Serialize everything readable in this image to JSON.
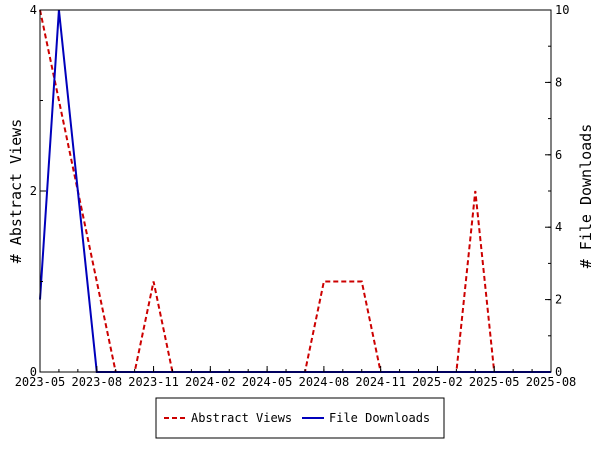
{
  "chart_data": {
    "type": "line",
    "y_left_label": "# Abstract Views",
    "y_right_label": "# File Downloads",
    "y_left_lim": [
      0,
      4
    ],
    "y_right_lim": [
      0,
      10
    ],
    "y_left_ticks": [
      "0",
      "2",
      "4"
    ],
    "y_right_ticks": [
      "0",
      "2",
      "4",
      "6",
      "8",
      "10"
    ],
    "x_ticks": [
      "2023-05",
      "2023-08",
      "2023-11",
      "2024-02",
      "2024-05",
      "2024-08",
      "2024-11",
      "2025-02",
      "2025-05",
      "2025-08"
    ],
    "x_months": [
      "2023-05",
      "2023-06",
      "2023-07",
      "2023-08",
      "2023-09",
      "2023-10",
      "2023-11",
      "2023-12",
      "2024-01",
      "2024-02",
      "2024-03",
      "2024-04",
      "2024-05",
      "2024-06",
      "2024-07",
      "2024-08",
      "2024-09",
      "2024-10",
      "2024-11",
      "2024-12",
      "2025-01",
      "2025-02",
      "2025-03",
      "2025-04",
      "2025-05",
      "2025-06",
      "2025-07",
      "2025-08"
    ],
    "series": [
      {
        "name": "Abstract Views",
        "axis": "left",
        "color": "#cc0000",
        "style": "dashed",
        "values": [
          4,
          null,
          null,
          null,
          0,
          0,
          1,
          0,
          0,
          0,
          0,
          0,
          0,
          0,
          0,
          1,
          1,
          1,
          0,
          0,
          0,
          0,
          0,
          2,
          0,
          0,
          0,
          0
        ]
      },
      {
        "name": "File Downloads",
        "axis": "right",
        "color": "#0000bb",
        "style": "solid",
        "values": [
          2,
          10,
          null,
          0,
          0,
          0,
          0,
          0,
          0,
          0,
          0,
          0,
          0,
          0,
          0,
          0,
          0,
          0,
          0,
          0,
          0,
          0,
          0,
          0,
          0,
          0,
          0,
          0
        ]
      }
    ],
    "legend_position": "bottom-center",
    "grid": false
  }
}
